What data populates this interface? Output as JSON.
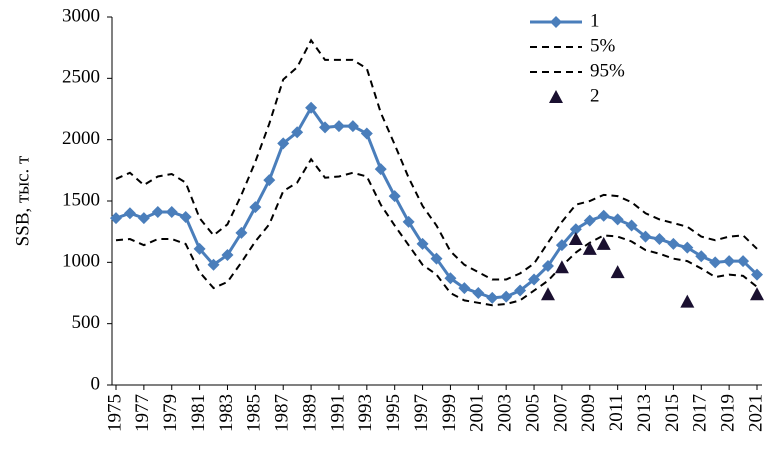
{
  "chart_data": {
    "type": "line",
    "y_label": "SSB, тыс. т",
    "x": [
      1975,
      1976,
      1977,
      1978,
      1979,
      1980,
      1981,
      1982,
      1983,
      1984,
      1985,
      1986,
      1987,
      1988,
      1989,
      1990,
      1991,
      1992,
      1993,
      1994,
      1995,
      1996,
      1997,
      1998,
      1999,
      2000,
      2001,
      2002,
      2003,
      2004,
      2005,
      2006,
      2007,
      2008,
      2009,
      2010,
      2011,
      2012,
      2013,
      2014,
      2015,
      2016,
      2017,
      2018,
      2019,
      2020,
      2021
    ],
    "xlim": [
      1975,
      2021
    ],
    "xticks": [
      1975,
      1977,
      1979,
      1981,
      1983,
      1985,
      1987,
      1989,
      1991,
      1993,
      1995,
      1997,
      1999,
      2001,
      2003,
      2005,
      2007,
      2009,
      2011,
      2013,
      2015,
      2017,
      2019,
      2021
    ],
    "ylim": [
      0,
      3000
    ],
    "yticks": [
      0,
      500,
      1000,
      1500,
      2000,
      2500,
      3000
    ],
    "legend": "top-right",
    "series": [
      {
        "name": "1",
        "color": "#4a7ebb",
        "marker": "diamond",
        "dash": false,
        "values": [
          1360,
          1400,
          1360,
          1410,
          1410,
          1370,
          1110,
          980,
          1060,
          1240,
          1450,
          1670,
          1970,
          2060,
          2260,
          2100,
          2110,
          2110,
          2050,
          1760,
          1540,
          1330,
          1150,
          1030,
          870,
          790,
          750,
          710,
          720,
          770,
          860,
          970,
          1140,
          1270,
          1340,
          1380,
          1350,
          1300,
          1210,
          1190,
          1150,
          1120,
          1050,
          1000,
          1010,
          1010,
          900
        ]
      },
      {
        "name": "5%",
        "color": "#000000",
        "marker": "none",
        "dash": true,
        "values": [
          1180,
          1190,
          1140,
          1190,
          1190,
          1150,
          920,
          790,
          840,
          1000,
          1170,
          1310,
          1580,
          1650,
          1840,
          1690,
          1700,
          1730,
          1700,
          1470,
          1300,
          1140,
          980,
          900,
          750,
          690,
          670,
          650,
          660,
          690,
          770,
          850,
          970,
          1080,
          1160,
          1220,
          1210,
          1170,
          1100,
          1070,
          1030,
          1010,
          950,
          880,
          900,
          890,
          800
        ]
      },
      {
        "name": "95%",
        "color": "#000000",
        "marker": "none",
        "dash": true,
        "values": [
          1680,
          1730,
          1630,
          1700,
          1720,
          1650,
          1360,
          1220,
          1310,
          1550,
          1820,
          2130,
          2490,
          2590,
          2810,
          2650,
          2650,
          2650,
          2580,
          2220,
          1960,
          1690,
          1460,
          1300,
          1090,
          980,
          920,
          860,
          860,
          910,
          990,
          1160,
          1330,
          1470,
          1500,
          1550,
          1540,
          1490,
          1400,
          1350,
          1320,
          1290,
          1210,
          1180,
          1210,
          1220,
          1110
        ]
      },
      {
        "name": "2",
        "color": "#1a1030",
        "marker": "triangle",
        "dash": false,
        "x": [
          2006,
          2007,
          2008,
          2009,
          2010,
          2011,
          2016,
          2021
        ],
        "values": [
          740,
          960,
          1190,
          1110,
          1150,
          920,
          680,
          740
        ]
      }
    ]
  }
}
